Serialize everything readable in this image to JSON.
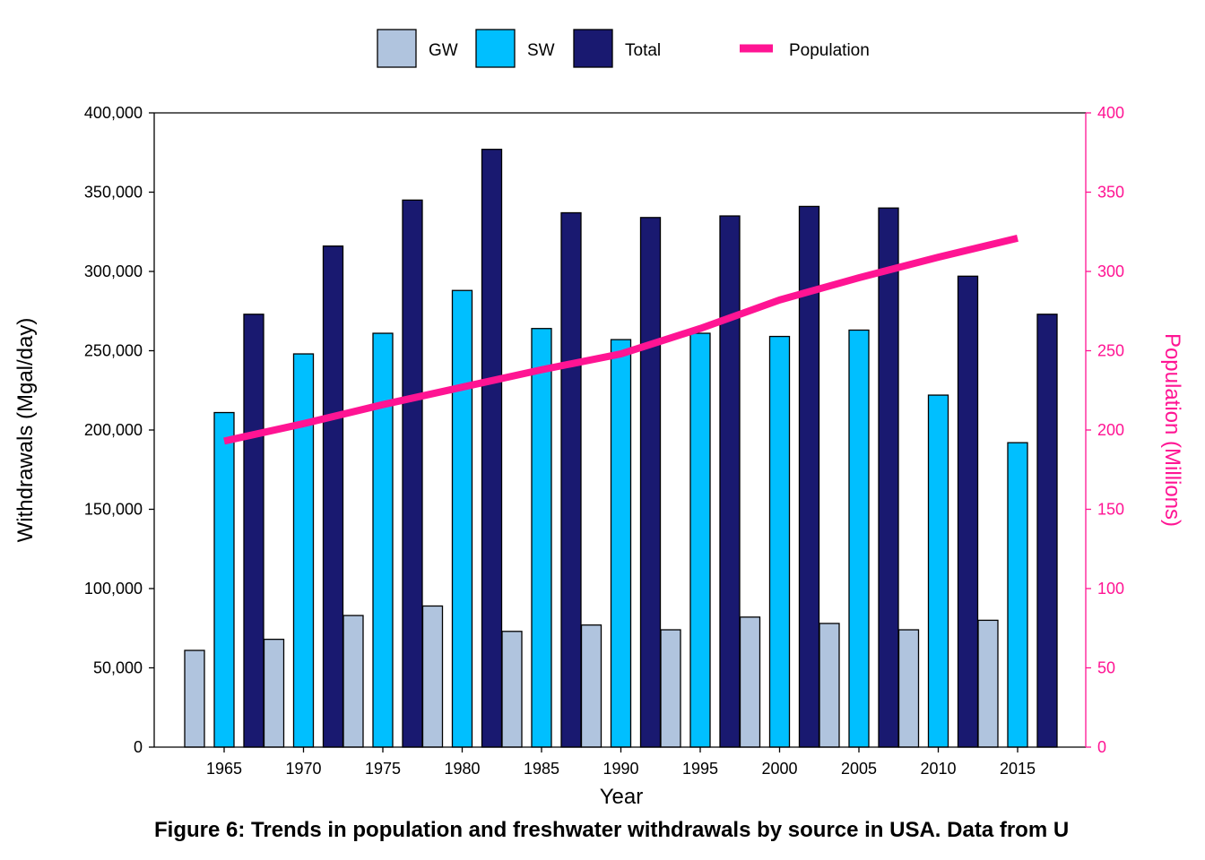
{
  "caption": "Figure 6: Trends in population and freshwater withdrawals by source in USA. Data from U",
  "chart_data": {
    "type": "bar",
    "categories": [
      "1965",
      "1970",
      "1975",
      "1980",
      "1985",
      "1990",
      "1995",
      "2000",
      "2005",
      "2010",
      "2015"
    ],
    "series": [
      {
        "name": "GW",
        "axis": "left",
        "color": "#b0c4de",
        "values": [
          61000,
          68000,
          83000,
          89000,
          73000,
          77000,
          74000,
          82000,
          78000,
          74000,
          80000
        ]
      },
      {
        "name": "SW",
        "axis": "left",
        "color": "#00bfff",
        "values": [
          211000,
          248000,
          261000,
          288000,
          264000,
          257000,
          261000,
          259000,
          263000,
          222000,
          192000
        ]
      },
      {
        "name": "Total",
        "axis": "left",
        "color": "#191970",
        "values": [
          273000,
          316000,
          345000,
          377000,
          337000,
          334000,
          335000,
          341000,
          340000,
          297000,
          273000
        ]
      }
    ],
    "line_series": {
      "name": "Population",
      "type": "line",
      "axis": "right",
      "color": "#ff1493",
      "values": [
        193,
        204,
        216,
        227,
        238,
        248,
        264,
        282,
        296,
        309,
        321
      ]
    },
    "xlabel": "Year",
    "ylabel": "Withdrawals (Mgal/day)",
    "y2label": "Population (Millions)",
    "ylim": [
      0,
      400000
    ],
    "y2lim": [
      0,
      400
    ],
    "yticks": [
      "0",
      "50,000",
      "100,000",
      "150,000",
      "200,000",
      "250,000",
      "300,000",
      "350,000",
      "400,000"
    ],
    "y2ticks": [
      "0",
      "50",
      "100",
      "150",
      "200",
      "250",
      "300",
      "350",
      "400"
    ],
    "right_axis_color": "#ff1493",
    "grid": false,
    "legend_position": "top"
  }
}
